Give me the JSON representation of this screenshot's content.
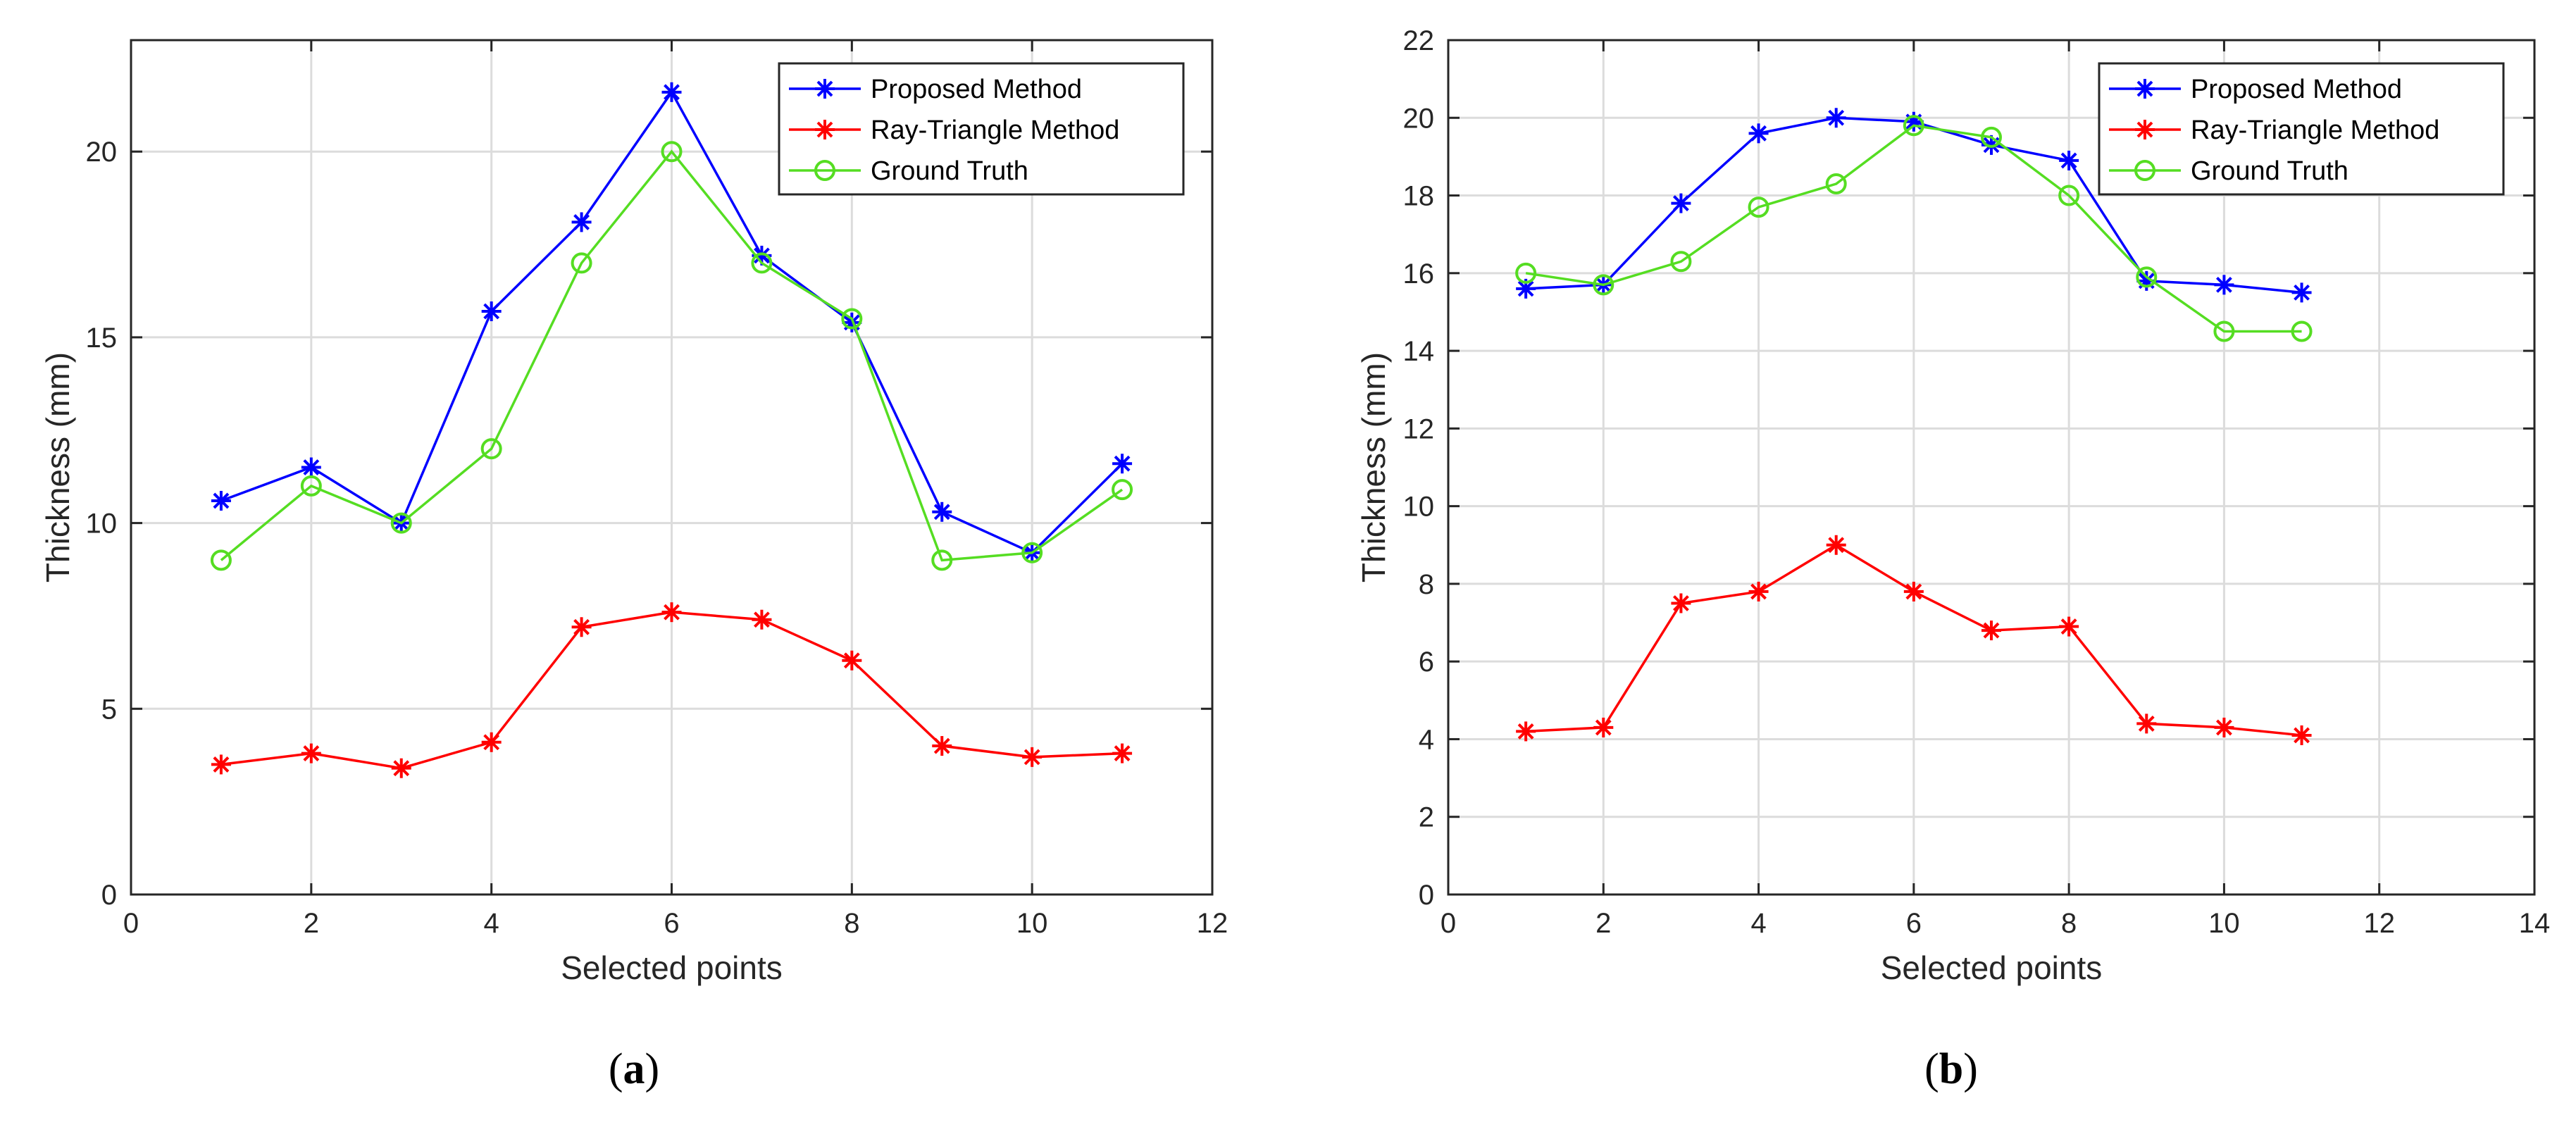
{
  "chart_data": [
    {
      "type": "line",
      "caption": {
        "open": "(",
        "letter": "a",
        "close": ")"
      },
      "xlabel": "Selected points",
      "ylabel": "Thickness (mm)",
      "xlim": [
        0,
        12
      ],
      "ylim": [
        0,
        23
      ],
      "xticks": [
        0,
        2,
        4,
        6,
        8,
        10,
        12
      ],
      "yticks": [
        0,
        5,
        10,
        15,
        20
      ],
      "grid": true,
      "legend_position": "top-right",
      "x": [
        1,
        2,
        3,
        4,
        5,
        6,
        7,
        8,
        9,
        10,
        11
      ],
      "series": [
        {
          "name": "Proposed Method",
          "color": "#0000ff",
          "marker": "asterisk",
          "values": [
            10.6,
            11.5,
            10.0,
            15.7,
            18.1,
            21.6,
            17.2,
            15.4,
            10.3,
            9.2,
            11.6
          ]
        },
        {
          "name": "Ray-Triangle Method",
          "color": "#ff0000",
          "marker": "asterisk",
          "values": [
            3.5,
            3.8,
            3.4,
            4.1,
            7.2,
            7.6,
            7.4,
            6.3,
            4.0,
            3.7,
            3.8
          ]
        },
        {
          "name": "Ground Truth",
          "color": "#55dd22",
          "marker": "circle",
          "values": [
            9.0,
            11.0,
            10.0,
            12.0,
            17.0,
            20.0,
            17.0,
            15.5,
            9.0,
            9.2,
            10.9
          ]
        }
      ]
    },
    {
      "type": "line",
      "caption": {
        "open": "(",
        "letter": "b",
        "close": ")"
      },
      "xlabel": "Selected points",
      "ylabel": "Thickness (mm)",
      "xlim": [
        0,
        14
      ],
      "ylim": [
        0,
        22
      ],
      "xticks": [
        0,
        2,
        4,
        6,
        8,
        10,
        12,
        14
      ],
      "yticks": [
        0,
        2,
        4,
        6,
        8,
        10,
        12,
        14,
        16,
        18,
        20,
        22
      ],
      "grid": true,
      "legend_position": "top-right",
      "x": [
        1,
        2,
        3,
        4,
        5,
        6,
        7,
        8,
        9,
        10,
        11
      ],
      "series": [
        {
          "name": "Proposed Method",
          "color": "#0000ff",
          "marker": "asterisk",
          "values": [
            15.6,
            15.7,
            17.8,
            19.6,
            20.0,
            19.9,
            19.3,
            18.9,
            15.8,
            15.7,
            15.5
          ]
        },
        {
          "name": "Ray-Triangle Method",
          "color": "#ff0000",
          "marker": "asterisk",
          "values": [
            4.2,
            4.3,
            7.5,
            7.8,
            9.0,
            7.8,
            6.8,
            6.9,
            4.4,
            4.3,
            4.1
          ]
        },
        {
          "name": "Ground Truth",
          "color": "#55dd22",
          "marker": "circle",
          "values": [
            16.0,
            15.7,
            16.3,
            17.7,
            18.3,
            19.8,
            19.5,
            18.0,
            15.9,
            14.5,
            14.5
          ]
        }
      ]
    }
  ]
}
